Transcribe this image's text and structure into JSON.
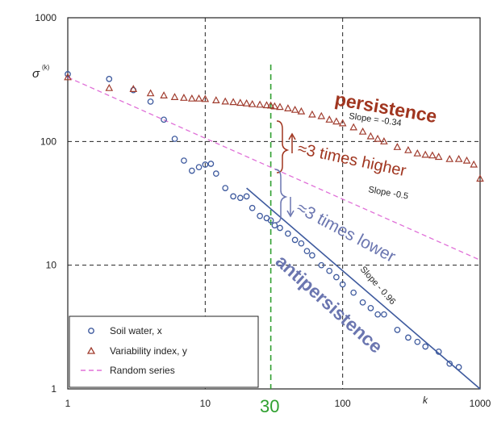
{
  "chart_data": {
    "type": "scatter",
    "xscale": "log",
    "yscale": "log",
    "xlim": [
      1,
      1000
    ],
    "ylim": [
      1,
      1000
    ],
    "x_ticks": [
      "1",
      "10",
      "100",
      "1000"
    ],
    "y_ticks": [
      "1",
      "10",
      "100",
      "1000"
    ],
    "xlabel": "k",
    "ylabel": "σ",
    "ylabel_superscript": "(k)",
    "grid": true,
    "legend_position": "bottom-left",
    "marker_line_value": "30",
    "series": [
      {
        "name": "Soil water, x",
        "marker": "circle",
        "color": "#3e5a9e",
        "x": [
          1,
          2,
          3,
          4,
          5,
          6,
          7,
          8,
          9,
          10,
          11,
          12,
          14,
          16,
          18,
          20,
          22,
          25,
          28,
          30,
          32,
          35,
          40,
          45,
          50,
          55,
          60,
          70,
          80,
          90,
          100,
          120,
          140,
          160,
          180,
          200,
          250,
          300,
          350,
          400,
          500,
          600,
          700
        ],
        "y": [
          350,
          320,
          260,
          210,
          150,
          105,
          70,
          58,
          62,
          65,
          66,
          55,
          42,
          36,
          35,
          36,
          29,
          25,
          24,
          23,
          21,
          20,
          18,
          16,
          15,
          13,
          12,
          10,
          9,
          8,
          7,
          6,
          5,
          4.5,
          4,
          4,
          3,
          2.6,
          2.4,
          2.2,
          2.0,
          1.6,
          1.5
        ]
      },
      {
        "name": "Variability index, y",
        "marker": "triangle",
        "color": "#a03c2e",
        "x": [
          1,
          2,
          3,
          4,
          5,
          6,
          7,
          8,
          9,
          10,
          12,
          14,
          16,
          18,
          20,
          22,
          25,
          28,
          30,
          32,
          35,
          40,
          45,
          50,
          60,
          70,
          80,
          90,
          100,
          120,
          140,
          160,
          180,
          200,
          250,
          300,
          350,
          400,
          450,
          500,
          600,
          700,
          800,
          900,
          1000
        ],
        "y": [
          330,
          270,
          265,
          245,
          235,
          228,
          225,
          222,
          222,
          220,
          215,
          210,
          208,
          205,
          203,
          200,
          198,
          196,
          195,
          192,
          190,
          185,
          180,
          175,
          165,
          160,
          150,
          145,
          140,
          130,
          120,
          110,
          105,
          100,
          90,
          85,
          80,
          78,
          77,
          75,
          72,
          72,
          70,
          65,
          50
        ]
      },
      {
        "name": "Random series",
        "type": "line",
        "style": "dashed",
        "color": "#e070d8",
        "x": [
          1,
          1000
        ],
        "y": [
          330,
          11
        ]
      },
      {
        "name": "",
        "type": "line",
        "style": "solid",
        "color": "#3e5a9e",
        "legend": false,
        "x": [
          20,
          1000
        ],
        "y": [
          42,
          1
        ]
      }
    ],
    "annotations": {
      "persistence": "persistence",
      "slope_persistence": "Slope = -0.34",
      "times_higher": "≈3 times higher",
      "slope_random": "Slope -0.5",
      "times_lower": "≈3 times lower",
      "slope_antipersistence": "Slope - 0.96",
      "antipersistence": "antipersistence"
    },
    "colors": {
      "persistence": "#a0351f",
      "antipersistence": "#6b76b0",
      "marker_line": "#30a030",
      "grid": "#222222"
    }
  }
}
